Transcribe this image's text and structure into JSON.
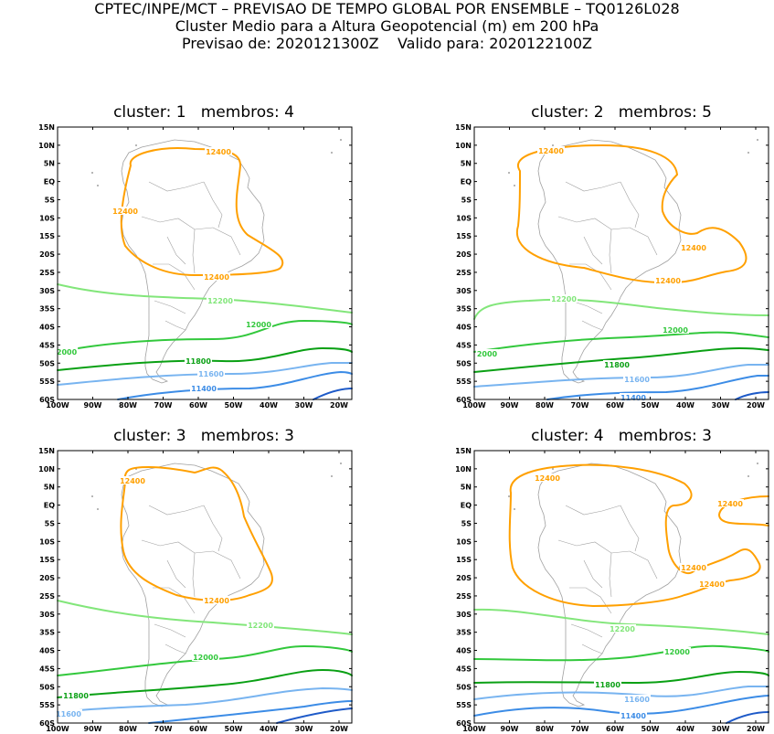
{
  "header": {
    "line1": "CPTEC/INPE/MCT – PREVISAO DE TEMPO GLOBAL POR ENSEMBLE – TQ0126L028",
    "line2": "Cluster Medio para a Altura Geopotencial (m) em 200 hPa",
    "line3": "Previsao de: 2020121300Z    Valido para: 2020122100Z"
  },
  "lat_labels": [
    "15N",
    "10N",
    "5N",
    "EQ",
    "5S",
    "10S",
    "15S",
    "20S",
    "25S",
    "30S",
    "35S",
    "40S",
    "45S",
    "50S",
    "55S",
    "60S"
  ],
  "lon_labels": [
    "100W",
    "90W",
    "80W",
    "70W",
    "60W",
    "50W",
    "40W",
    "30W",
    "20W"
  ],
  "colors": {
    "c12400": "#ffa000",
    "c12200": "#82e67a",
    "c12000": "#32c83c",
    "c11800": "#0aa014",
    "c11600": "#78b4f0",
    "c11400": "#3c8ce6",
    "c11200": "#1e5ac8",
    "coast": "#a0a0a0"
  },
  "panels": [
    {
      "title": "cluster: 1   membros: 4",
      "labels": [
        "12400",
        "12400",
        "12400",
        "12200",
        "12000",
        "2000",
        "11800",
        "11600",
        "11400"
      ]
    },
    {
      "title": "cluster: 2   membros: 5",
      "labels": [
        "12400",
        "12400",
        "12400",
        "12200",
        "12000",
        "2000",
        "11800",
        "11600",
        "11400"
      ]
    },
    {
      "title": "cluster: 3   membros: 3",
      "labels": [
        "12400",
        "12400",
        "12200",
        "12000",
        "11800",
        "11600"
      ]
    },
    {
      "title": "cluster: 4   membros: 3",
      "labels": [
        "12400",
        "12400",
        "12400",
        "12400",
        "12200",
        "12000",
        "11800",
        "11600",
        "11400"
      ]
    }
  ]
}
